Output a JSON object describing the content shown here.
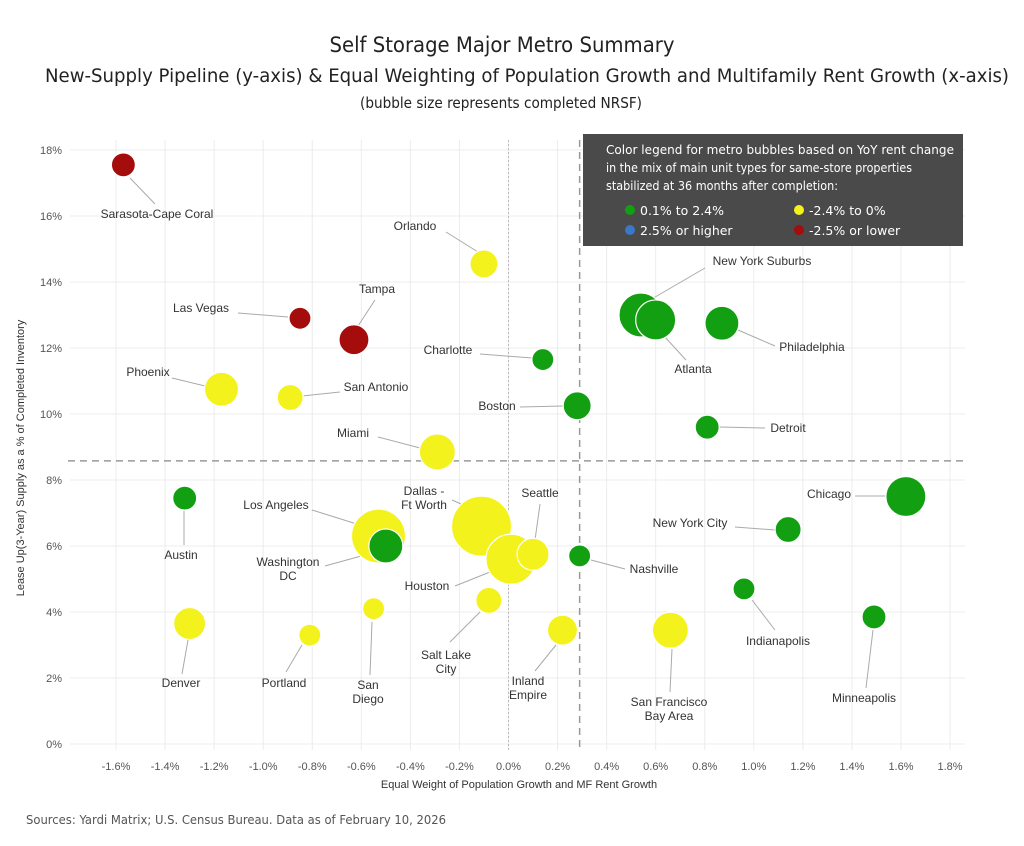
{
  "chart_data": {
    "type": "scatter",
    "title": "Self Storage Major Metro Summary",
    "subtitle": "New-Supply Pipeline (y-axis) & Equal Weighting of Population Growth and Multifamily Rent Growth (x-axis)",
    "note": "(bubble size represents completed NRSF)",
    "xlabel": "Equal Weight of Population Growth and MF Rent Growth",
    "ylabel": "Lease Up(3-Year) Supply as a % of Completed Inventory",
    "xlim": [
      -1.8,
      1.85
    ],
    "ylim": [
      0,
      18
    ],
    "x_ticks": [
      "-1.6%",
      "-1.4%",
      "-1.2%",
      "-1.0%",
      "-0.8%",
      "-0.6%",
      "-0.4%",
      "-0.2%",
      "0.0%",
      "0.2%",
      "0.4%",
      "0.6%",
      "0.8%",
      "1.0%",
      "1.2%",
      "1.4%",
      "1.6%",
      "1.8%"
    ],
    "y_ticks": [
      "0%",
      "2%",
      "4%",
      "6%",
      "8%",
      "10%",
      "12%",
      "14%",
      "16%",
      "18%"
    ],
    "grid": true,
    "reference_lines": {
      "x_average": 0.29,
      "y_average": 8.58
    },
    "legend": {
      "title": [
        "Color legend for metro bubbles based on YoY rent change",
        "in the mix of main unit types for same-store properties",
        "stabilized at 36 months after completion:"
      ],
      "position": "top-right",
      "items": [
        {
          "label": "0.1% to 2.4%",
          "color": "#12a012",
          "key": "green"
        },
        {
          "label": "-2.4% to 0%",
          "color": "#f4f21c",
          "key": "yellow"
        },
        {
          "label": "2.5% or higher",
          "color": "#3a78c8",
          "key": "blue"
        },
        {
          "label": "-2.5% or lower",
          "color": "#a50c0c",
          "key": "red"
        }
      ]
    },
    "points": [
      {
        "name": "Sarasota-Cape Coral",
        "x": -1.57,
        "y": 17.55,
        "size": 12,
        "color": "red"
      },
      {
        "name": "Orlando",
        "x": -0.1,
        "y": 14.55,
        "size": 14,
        "color": "yellow"
      },
      {
        "name": "Las Vegas",
        "x": -0.85,
        "y": 12.9,
        "size": 11,
        "color": "red"
      },
      {
        "name": "Tampa",
        "x": -0.63,
        "y": 12.25,
        "size": 15,
        "color": "red"
      },
      {
        "name": "Charlotte",
        "x": 0.14,
        "y": 11.65,
        "size": 11,
        "color": "green"
      },
      {
        "name": "Phoenix",
        "x": -1.17,
        "y": 10.75,
        "size": 17,
        "color": "yellow"
      },
      {
        "name": "San Antonio",
        "x": -0.89,
        "y": 10.5,
        "size": 13,
        "color": "yellow"
      },
      {
        "name": "Boston",
        "x": 0.28,
        "y": 10.25,
        "size": 14,
        "color": "green"
      },
      {
        "name": "Miami",
        "x": -0.29,
        "y": 8.85,
        "size": 18,
        "color": "yellow"
      },
      {
        "name": "New York Suburbs",
        "x": 0.54,
        "y": 13.0,
        "size": 22,
        "color": "green"
      },
      {
        "name": "Atlanta",
        "x": 0.6,
        "y": 12.85,
        "size": 20,
        "color": "green"
      },
      {
        "name": "Philadelphia",
        "x": 0.87,
        "y": 12.75,
        "size": 17,
        "color": "green"
      },
      {
        "name": "Detroit",
        "x": 0.81,
        "y": 9.6,
        "size": 12,
        "color": "green"
      },
      {
        "name": "Chicago",
        "x": 1.62,
        "y": 7.5,
        "size": 20,
        "color": "green"
      },
      {
        "name": "New York City",
        "x": 1.14,
        "y": 6.5,
        "size": 13,
        "color": "green"
      },
      {
        "name": "Austin",
        "x": -1.32,
        "y": 7.45,
        "size": 12,
        "color": "green"
      },
      {
        "name": "Los Angeles",
        "x": -0.53,
        "y": 6.3,
        "size": 27,
        "color": "yellow"
      },
      {
        "name": "Dallas - Ft Worth",
        "x": -0.11,
        "y": 6.6,
        "size": 30,
        "color": "yellow"
      },
      {
        "name": "Houston",
        "x": 0.01,
        "y": 5.6,
        "size": 25,
        "color": "yellow"
      },
      {
        "name": "Seattle",
        "x": 0.1,
        "y": 5.75,
        "size": 16,
        "color": "yellow"
      },
      {
        "name": "Washington DC",
        "x": -0.5,
        "y": 6.0,
        "size": 17,
        "color": "green"
      },
      {
        "name": "Nashville",
        "x": 0.29,
        "y": 5.7,
        "size": 11,
        "color": "green"
      },
      {
        "name": "Indianapolis",
        "x": 0.96,
        "y": 4.7,
        "size": 11,
        "color": "green"
      },
      {
        "name": "Minneapolis",
        "x": 1.49,
        "y": 3.85,
        "size": 12,
        "color": "green"
      },
      {
        "name": "Denver",
        "x": -1.3,
        "y": 3.65,
        "size": 16,
        "color": "yellow"
      },
      {
        "name": "Portland",
        "x": -0.81,
        "y": 3.3,
        "size": 11,
        "color": "yellow"
      },
      {
        "name": "San Diego",
        "x": -0.55,
        "y": 4.1,
        "size": 11,
        "color": "yellow"
      },
      {
        "name": "Salt Lake City",
        "x": -0.08,
        "y": 4.35,
        "size": 13,
        "color": "yellow"
      },
      {
        "name": "Inland Empire",
        "x": 0.22,
        "y": 3.45,
        "size": 15,
        "color": "yellow"
      },
      {
        "name": "San Francisco Bay Area",
        "x": 0.66,
        "y": 3.45,
        "size": 18,
        "color": "yellow"
      }
    ]
  },
  "footer": {
    "source": "Sources: Yardi Matrix; U.S. Census Bureau. Data as of February 10, 2026"
  }
}
